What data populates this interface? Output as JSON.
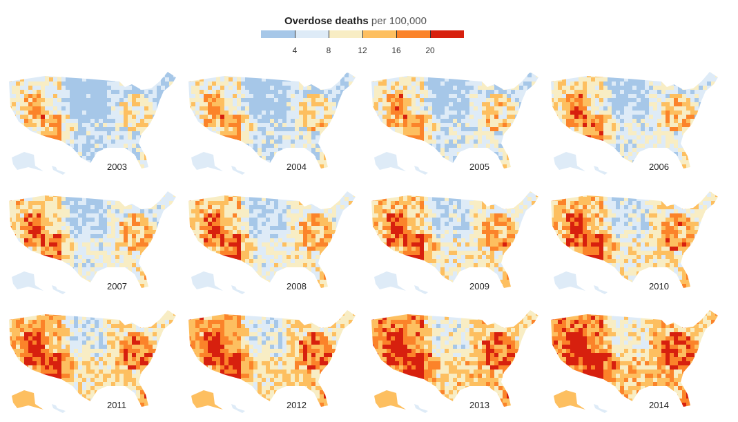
{
  "legend": {
    "title": "Overdose deaths",
    "subtitle": "per 100,000",
    "ticks": [
      "4",
      "8",
      "12",
      "16",
      "20"
    ],
    "colors": [
      "#a6c7e8",
      "#deebf7",
      "#f8edc4",
      "#fdbf60",
      "#fb832a",
      "#d7200e"
    ]
  },
  "maps": [
    {
      "year": "2003",
      "intensity": 0.0
    },
    {
      "year": "2004",
      "intensity": 0.08
    },
    {
      "year": "2005",
      "intensity": 0.16
    },
    {
      "year": "2006",
      "intensity": 0.26
    },
    {
      "year": "2007",
      "intensity": 0.36
    },
    {
      "year": "2008",
      "intensity": 0.44
    },
    {
      "year": "2009",
      "intensity": 0.52
    },
    {
      "year": "2010",
      "intensity": 0.6
    },
    {
      "year": "2011",
      "intensity": 0.72
    },
    {
      "year": "2012",
      "intensity": 0.8
    },
    {
      "year": "2013",
      "intensity": 0.9
    },
    {
      "year": "2014",
      "intensity": 1.0
    }
  ]
}
